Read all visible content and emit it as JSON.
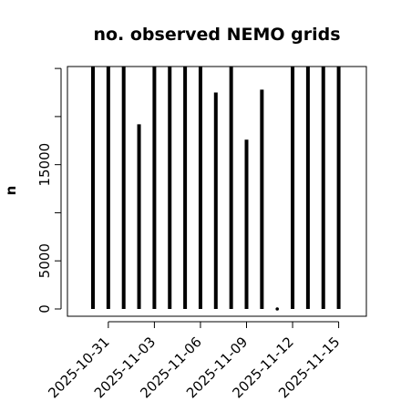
{
  "chart_data": {
    "type": "bar",
    "title": "no. observed NEMO grids",
    "xlabel": "",
    "ylabel": "n",
    "ylim": [
      0,
      25200
    ],
    "y_ticks": [
      0,
      5000,
      10000,
      15000,
      20000,
      25000
    ],
    "y_tick_labels": [
      "0",
      "5000",
      "",
      "15000",
      "",
      ""
    ],
    "x_ticks": [
      "2025-10-31",
      "2025-11-03",
      "2025-11-06",
      "2025-11-09",
      "2025-11-12",
      "2025-11-15"
    ],
    "categories": [
      "2025-10-30",
      "2025-10-31",
      "2025-11-01",
      "2025-11-02",
      "2025-11-03",
      "2025-11-04",
      "2025-11-05",
      "2025-11-06",
      "2025-11-07",
      "2025-11-08",
      "2025-11-09",
      "2025-11-10",
      "2025-11-11",
      "2025-11-12",
      "2025-11-13",
      "2025-11-14",
      "2025-11-15"
    ],
    "values": [
      25200,
      25200,
      25200,
      19200,
      25200,
      25200,
      25200,
      25200,
      22500,
      25200,
      17600,
      22800,
      80,
      25200,
      25200,
      25200,
      25200
    ],
    "grid": false,
    "legend": "none"
  }
}
